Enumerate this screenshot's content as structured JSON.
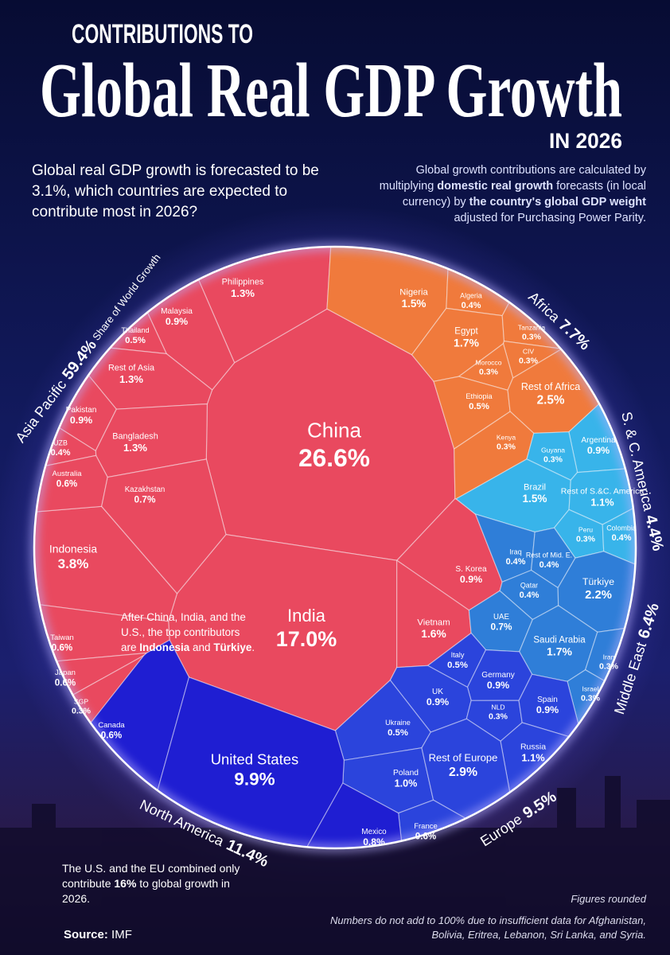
{
  "chart_data": {
    "type": "voronoi",
    "kicker": "CONTRIBUTIONS TO",
    "title": "Global Real GDP Growth",
    "subtitle": "IN 2026",
    "intro": "Global real GDP growth is forecasted to be 3.1%, which countries are expected to contribute most in 2026?",
    "method_note": [
      "Global growth contributions are calculated by multiplying ",
      "domestic real growth",
      " forecasts (in local currency) by ",
      "the country's global GDP weight",
      " adjusted for Purchasing Power Parity."
    ],
    "share_caption": "Share of World Growth",
    "annotation": [
      "After China, India, and the U.S., the top contributors are ",
      "Indonesia",
      " and ",
      "Türkiye",
      "."
    ],
    "footnote": [
      "The U.S. and the EU combined only contribute ",
      "16%",
      " to global growth in 2026."
    ],
    "rounding_note": "Figures rounded",
    "coverage_note": "Numbers do not add to 100% due to insufficient data for Afghanistan, Bolivia, Eritrea, Lebanon, Sri Lanka, and Syria.",
    "source_label": "Source:",
    "source": "IMF",
    "regions": [
      {
        "name": "Asia Pacific",
        "value": 59.4,
        "value_label": "59.4%",
        "color": "#e9495f",
        "categories": [
          "China",
          "India",
          "Indonesia",
          "Philippines",
          "Malaysia",
          "Thailand",
          "Rest of Asia",
          "Pakistan",
          "Bangladesh",
          "UZB",
          "Australia",
          "Kazakhstan",
          "Taiwan",
          "Japan",
          "SGP",
          "S. Korea",
          "Vietnam"
        ],
        "values": [
          26.6,
          17.0,
          3.8,
          1.3,
          0.9,
          0.5,
          1.3,
          0.9,
          1.3,
          0.4,
          0.6,
          0.7,
          0.6,
          0.6,
          0.3,
          0.9,
          1.6
        ],
        "value_labels": [
          "26.6%",
          "17.0%",
          "3.8%",
          "1.3%",
          "0.9%",
          "0.5%",
          "1.3%",
          "0.9%",
          "1.3%",
          "0.4%",
          "0.6%",
          "0.7%",
          "0.6%",
          "0.6%",
          "0.3%",
          "0.9%",
          "1.6%"
        ]
      },
      {
        "name": "Africa",
        "value": 7.7,
        "value_label": "7.7%",
        "color": "#f07a3c",
        "categories": [
          "Nigeria",
          "Algeria",
          "Egypt",
          "Tanzania",
          "CIV",
          "Morocco",
          "Ethiopia",
          "Rest of Africa",
          "Kenya"
        ],
        "values": [
          1.5,
          0.4,
          1.7,
          0.3,
          0.3,
          0.3,
          0.5,
          2.5,
          0.3
        ],
        "value_labels": [
          "1.5%",
          "0.4%",
          "1.7%",
          "0.3%",
          "0.3%",
          "0.3%",
          "0.5%",
          "2.5%",
          "0.3%"
        ]
      },
      {
        "name": "S. & C. America",
        "value": 4.4,
        "value_label": "4.4%",
        "color": "#38b4ea",
        "categories": [
          "Argentina",
          "Guyana",
          "Brazil",
          "Rest of S.&C. America",
          "Peru",
          "Colombia"
        ],
        "values": [
          0.9,
          0.3,
          1.5,
          1.1,
          0.3,
          0.4
        ],
        "value_labels": [
          "0.9%",
          "0.3%",
          "1.5%",
          "1.1%",
          "0.3%",
          "0.4%"
        ]
      },
      {
        "name": "Middle East",
        "value": 6.4,
        "value_label": "6.4%",
        "color": "#2f7ed8",
        "categories": [
          "Iraq",
          "Rest of Mid. E.",
          "Qatar",
          "Türkiye",
          "UAE",
          "Saudi Arabia",
          "Iran",
          "Israel"
        ],
        "values": [
          0.4,
          0.4,
          0.4,
          2.2,
          0.7,
          1.7,
          0.3,
          0.3
        ],
        "value_labels": [
          "0.4%",
          "0.4%",
          "0.4%",
          "2.2%",
          "0.7%",
          "1.7%",
          "0.3%",
          "0.3%"
        ]
      },
      {
        "name": "Europe",
        "value": 9.5,
        "value_label": "9.5%",
        "color": "#2b44dc",
        "categories": [
          "Italy",
          "Germany",
          "UK",
          "NLD",
          "Spain",
          "Ukraine",
          "Russia",
          "Poland",
          "Rest of Europe",
          "France"
        ],
        "values": [
          0.5,
          0.9,
          0.9,
          0.3,
          0.9,
          0.5,
          1.1,
          1.0,
          2.9,
          0.6
        ],
        "value_labels": [
          "0.5%",
          "0.9%",
          "0.9%",
          "0.3%",
          "0.9%",
          "0.5%",
          "1.1%",
          "1.0%",
          "2.9%",
          "0.6%"
        ]
      },
      {
        "name": "North America",
        "value": 11.4,
        "value_label": "11.4%",
        "color": "#1f1ed2",
        "categories": [
          "Canada",
          "United States",
          "Mexico"
        ],
        "values": [
          0.6,
          9.9,
          0.8
        ],
        "value_labels": [
          "0.6%",
          "9.9%",
          "0.8%"
        ]
      }
    ]
  }
}
